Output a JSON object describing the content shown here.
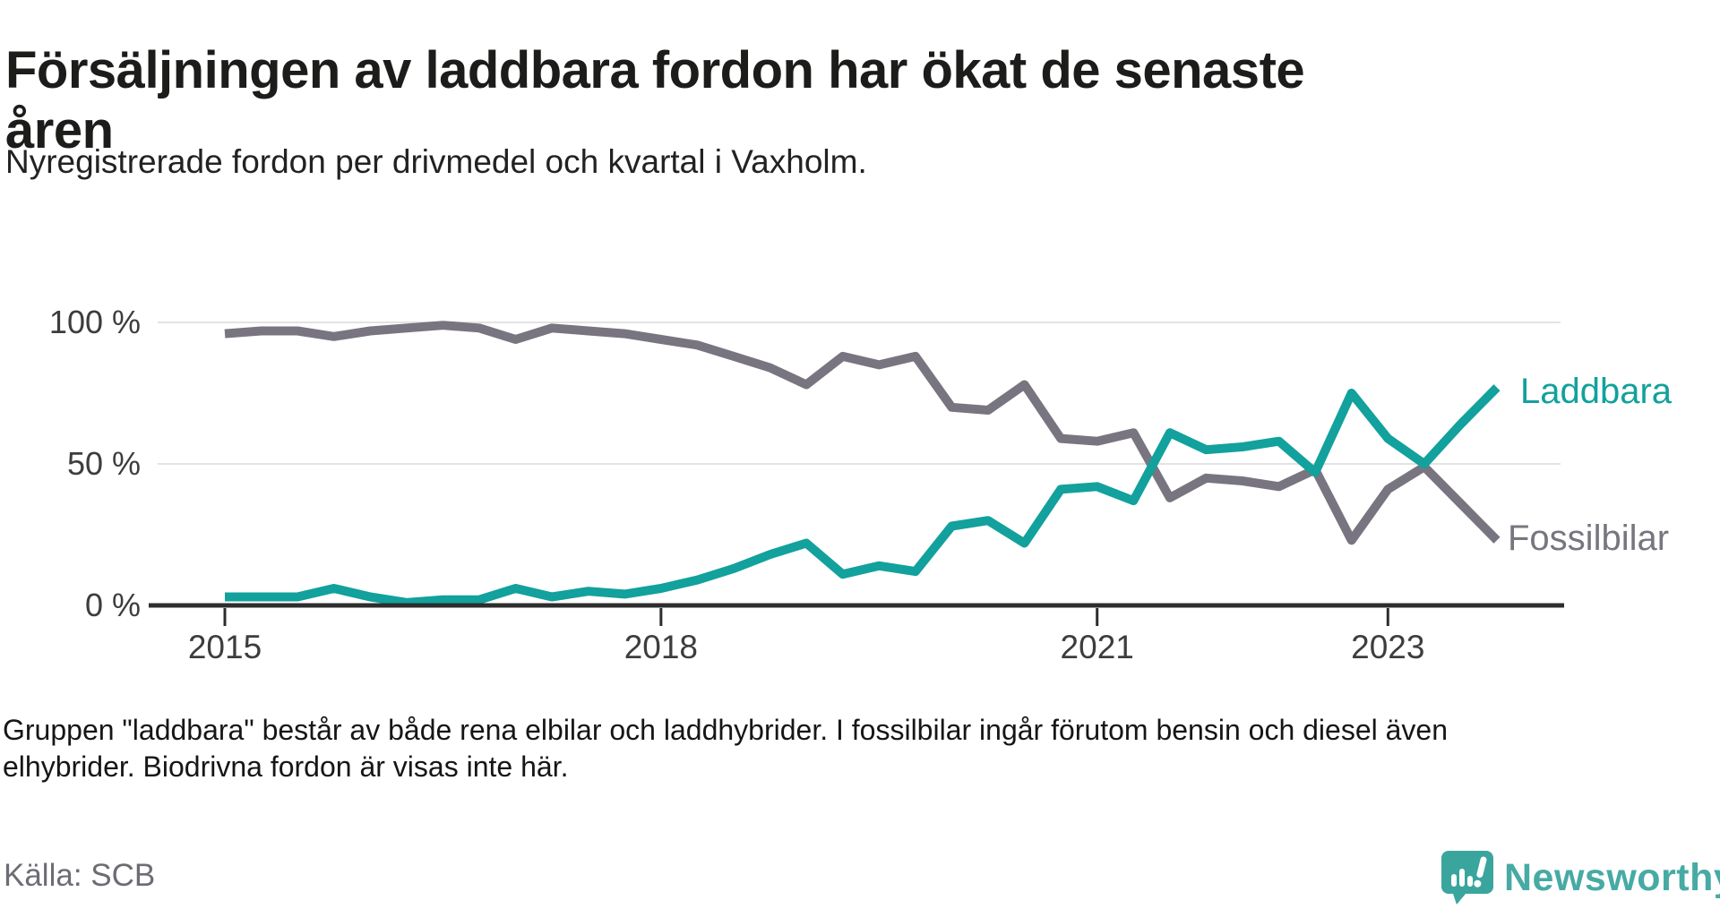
{
  "header": {
    "title_line1": "Försäljningen av laddbara fordon har ökat de senaste",
    "title_line2": "åren",
    "subtitle": "Nyregistrerade fordon per drivmedel och kvartal i Vaxholm."
  },
  "chart_data": {
    "type": "line",
    "title": "Nyregistrerade fordon per drivmedel och kvartal i Vaxholm",
    "unit": "percent",
    "ylim": [
      0,
      100
    ],
    "grid": "horizontal",
    "legend_position": "line-end-labels",
    "x": [
      "2015-K1",
      "2015-K2",
      "2015-K3",
      "2015-K4",
      "2016-K1",
      "2016-K2",
      "2016-K3",
      "2016-K4",
      "2017-K1",
      "2017-K2",
      "2017-K3",
      "2017-K4",
      "2018-K1",
      "2018-K2",
      "2018-K3",
      "2018-K4",
      "2019-K1",
      "2019-K2",
      "2019-K3",
      "2019-K4",
      "2020-K1",
      "2020-K2",
      "2020-K3",
      "2020-K4",
      "2021-K1",
      "2021-K2",
      "2021-K3",
      "2021-K4",
      "2022-K1",
      "2022-K2",
      "2022-K3",
      "2022-K4",
      "2023-K1",
      "2023-K2",
      "2023-K3",
      "2023-K4"
    ],
    "series": [
      {
        "name": "Laddbara",
        "color": "#12a19c",
        "values": [
          3,
          3,
          3,
          6,
          3,
          1,
          2,
          2,
          6,
          3,
          5,
          4,
          6,
          9,
          13,
          18,
          22,
          11,
          14,
          12,
          28,
          30,
          22,
          41,
          42,
          37,
          61,
          55,
          56,
          58,
          47,
          75,
          59,
          50,
          64,
          77
        ]
      },
      {
        "name": "Fossilbilar",
        "color": "#787580",
        "values": [
          96,
          97,
          97,
          95,
          97,
          98,
          99,
          98,
          94,
          98,
          97,
          96,
          94,
          92,
          88,
          84,
          78,
          88,
          85,
          88,
          70,
          69,
          78,
          59,
          58,
          61,
          38,
          45,
          44,
          42,
          48,
          23,
          41,
          49,
          36,
          23
        ]
      }
    ],
    "y_ticks": [
      {
        "value": 100,
        "label": "100 %"
      },
      {
        "value": 50,
        "label": "50 %"
      },
      {
        "value": 0,
        "label": "0 %"
      }
    ],
    "x_ticks": [
      {
        "index": 0,
        "label": "2015"
      },
      {
        "index": 12,
        "label": "2018"
      },
      {
        "index": 24,
        "label": "2021"
      },
      {
        "index": 32,
        "label": "2023"
      }
    ],
    "gridline_values": [
      100,
      50
    ],
    "colors": {
      "grid": "#e3e3e3",
      "axis": "#2d2d2d",
      "tick_label": "#3d3d3d"
    }
  },
  "footer": {
    "note_line1": "Gruppen \"laddbara\" består av både rena elbilar och laddhybrider. I fossilbilar ingår förutom bensin och diesel även",
    "note_line2": "elhybrider. Biodrivna fordon är visas inte här.",
    "source": "Källa: SCB"
  },
  "logo": {
    "wordmark": "Newsworthy"
  }
}
